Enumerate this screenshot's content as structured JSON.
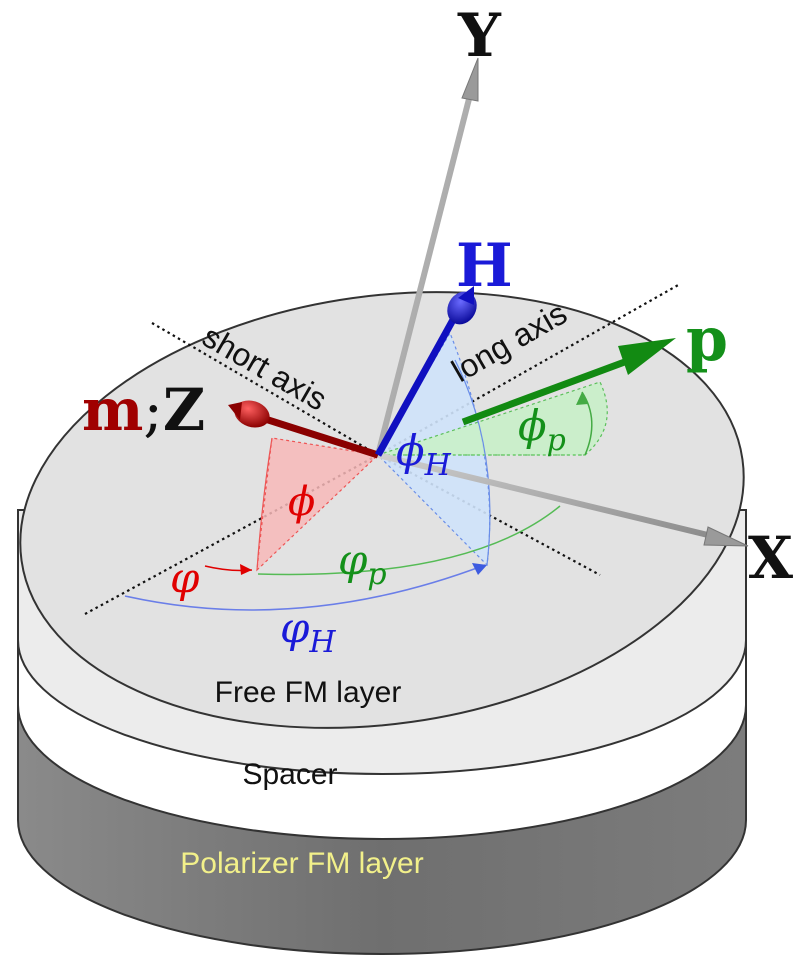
{
  "axes": {
    "x_label": "X",
    "y_label": "Y",
    "z_label": "Z",
    "z_separator": ";"
  },
  "vectors": {
    "m_label": "m",
    "h_label": "H",
    "p_label": "p"
  },
  "axis_lines": {
    "short_axis": "short axis",
    "long_axis": "long axis"
  },
  "angles": {
    "phi": "ϕ",
    "phi_h_base": "ϕ",
    "phi_h_sub": "H",
    "phi_p_base": "ϕ",
    "phi_p_sub": "p",
    "varphi": "φ",
    "varphi_h_base": "φ",
    "varphi_h_sub": "H",
    "varphi_p_base": "φ",
    "varphi_p_sub": "p"
  },
  "layers": {
    "free": "Free FM layer",
    "spacer": "Spacer",
    "polarizer": "Polarizer FM layer"
  },
  "colors": {
    "m": "#a00000",
    "h": "#1010d0",
    "p": "#108010",
    "phi": "#e00000",
    "top_face": "#e4e4e4",
    "free_side": "#e9e9e9",
    "spacer_side": "#ffffff",
    "polarizer_side": "#7a7a7a",
    "polarizer_text": "#f2f08a",
    "axis_gray": "#a8a8a8"
  }
}
